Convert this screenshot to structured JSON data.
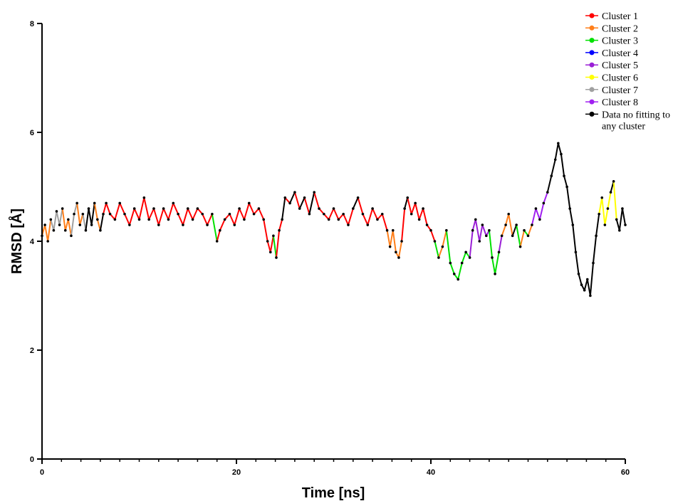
{
  "chart_data": {
    "type": "line",
    "title": "",
    "xlabel": "Time [ns]",
    "ylabel": "RMSD [Å]",
    "xlim": [
      0,
      60
    ],
    "ylim": [
      0,
      8
    ],
    "x_ticks": [
      0,
      20,
      40,
      60
    ],
    "y_ticks": [
      0,
      2,
      4,
      6,
      8
    ],
    "x_tick_labels": [
      "0",
      "20",
      "40",
      "60"
    ],
    "y_tick_labels": [
      "0",
      "2",
      "4",
      "6",
      "8"
    ],
    "grid": false,
    "legend_position": "top-right",
    "series_style": "line with point markers, colored by cluster membership per segment",
    "series": [
      {
        "name": "Cluster 1",
        "color": "#ff0000"
      },
      {
        "name": "Cluster 2",
        "color": "#ff7f1a"
      },
      {
        "name": "Cluster 3",
        "color": "#00e000"
      },
      {
        "name": "Cluster 4",
        "color": "#0000ff"
      },
      {
        "name": "Cluster 5",
        "color": "#9a1fd6"
      },
      {
        "name": "Cluster 6",
        "color": "#ffff00"
      },
      {
        "name": "Cluster 7",
        "color": "#a0a0a0"
      },
      {
        "name": "Cluster 8",
        "color": "#a020f0"
      },
      {
        "name": "Data no fitting to any cluster",
        "color": "#000000"
      }
    ],
    "points": [
      [
        0.0,
        4.1,
        "Cluster 2"
      ],
      [
        0.3,
        4.3,
        "Cluster 2"
      ],
      [
        0.6,
        4.0,
        "Cluster 2"
      ],
      [
        0.9,
        4.4,
        "Cluster 2"
      ],
      [
        1.2,
        4.2,
        "Cluster 7"
      ],
      [
        1.5,
        4.55,
        "Cluster 7"
      ],
      [
        1.8,
        4.3,
        "Cluster 7"
      ],
      [
        2.1,
        4.6,
        "Cluster 7"
      ],
      [
        2.4,
        4.2,
        "Cluster 2"
      ],
      [
        2.7,
        4.4,
        "Cluster 2"
      ],
      [
        3.0,
        4.1,
        "Cluster 2"
      ],
      [
        3.3,
        4.5,
        "Cluster 7"
      ],
      [
        3.6,
        4.7,
        "Cluster 7"
      ],
      [
        3.9,
        4.3,
        "Cluster 2"
      ],
      [
        4.2,
        4.5,
        "Cluster 2"
      ],
      [
        4.5,
        4.2,
        "Cluster 7"
      ],
      [
        4.8,
        4.6,
        "Data no fitting to any cluster"
      ],
      [
        5.1,
        4.3,
        "Data no fitting to any cluster"
      ],
      [
        5.4,
        4.7,
        "Data no fitting to any cluster"
      ],
      [
        5.7,
        4.4,
        "Cluster 2"
      ],
      [
        6.0,
        4.2,
        "Cluster 2"
      ],
      [
        6.3,
        4.5,
        "Data no fitting to any cluster"
      ],
      [
        6.6,
        4.7,
        "Cluster 1"
      ],
      [
        7.0,
        4.5,
        "Cluster 1"
      ],
      [
        7.5,
        4.4,
        "Cluster 1"
      ],
      [
        8.0,
        4.7,
        "Cluster 1"
      ],
      [
        8.5,
        4.5,
        "Cluster 1"
      ],
      [
        9.0,
        4.3,
        "Cluster 1"
      ],
      [
        9.5,
        4.6,
        "Cluster 1"
      ],
      [
        10.0,
        4.4,
        "Cluster 1"
      ],
      [
        10.5,
        4.8,
        "Cluster 1"
      ],
      [
        11.0,
        4.4,
        "Cluster 1"
      ],
      [
        11.5,
        4.6,
        "Cluster 1"
      ],
      [
        12.0,
        4.3,
        "Cluster 1"
      ],
      [
        12.5,
        4.6,
        "Cluster 1"
      ],
      [
        13.0,
        4.4,
        "Cluster 1"
      ],
      [
        13.5,
        4.7,
        "Cluster 1"
      ],
      [
        14.0,
        4.5,
        "Cluster 1"
      ],
      [
        14.5,
        4.3,
        "Cluster 1"
      ],
      [
        15.0,
        4.6,
        "Cluster 1"
      ],
      [
        15.5,
        4.4,
        "Cluster 1"
      ],
      [
        16.0,
        4.6,
        "Cluster 1"
      ],
      [
        16.5,
        4.5,
        "Cluster 1"
      ],
      [
        17.0,
        4.3,
        "Cluster 1"
      ],
      [
        17.5,
        4.5,
        "Cluster 1"
      ],
      [
        18.0,
        4.0,
        "Cluster 3"
      ],
      [
        18.3,
        4.2,
        "Cluster 1"
      ],
      [
        18.8,
        4.4,
        "Cluster 1"
      ],
      [
        19.3,
        4.5,
        "Cluster 1"
      ],
      [
        19.8,
        4.3,
        "Cluster 1"
      ],
      [
        20.3,
        4.6,
        "Cluster 1"
      ],
      [
        20.8,
        4.4,
        "Cluster 1"
      ],
      [
        21.3,
        4.7,
        "Cluster 1"
      ],
      [
        21.8,
        4.5,
        "Cluster 1"
      ],
      [
        22.3,
        4.6,
        "Cluster 1"
      ],
      [
        22.8,
        4.4,
        "Cluster 1"
      ],
      [
        23.2,
        4.0,
        "Cluster 1"
      ],
      [
        23.5,
        3.8,
        "Cluster 1"
      ],
      [
        23.8,
        4.1,
        "Cluster 1"
      ],
      [
        24.1,
        3.7,
        "Cluster 3"
      ],
      [
        24.4,
        4.2,
        "Cluster 1"
      ],
      [
        24.7,
        4.4,
        "Cluster 1"
      ],
      [
        25.0,
        4.8,
        "Data no fitting to any cluster"
      ],
      [
        25.5,
        4.7,
        "Cluster 1"
      ],
      [
        26.0,
        4.9,
        "Data no fitting to any cluster"
      ],
      [
        26.5,
        4.6,
        "Cluster 1"
      ],
      [
        27.0,
        4.8,
        "Data no fitting to any cluster"
      ],
      [
        27.5,
        4.5,
        "Cluster 1"
      ],
      [
        28.0,
        4.9,
        "Data no fitting to any cluster"
      ],
      [
        28.5,
        4.6,
        "Cluster 1"
      ],
      [
        29.0,
        4.5,
        "Cluster 1"
      ],
      [
        29.5,
        4.4,
        "Cluster 1"
      ],
      [
        30.0,
        4.6,
        "Cluster 1"
      ],
      [
        30.5,
        4.4,
        "Cluster 1"
      ],
      [
        31.0,
        4.5,
        "Cluster 1"
      ],
      [
        31.5,
        4.3,
        "Cluster 1"
      ],
      [
        32.0,
        4.6,
        "Cluster 1"
      ],
      [
        32.5,
        4.8,
        "Data no fitting to any cluster"
      ],
      [
        33.0,
        4.5,
        "Cluster 1"
      ],
      [
        33.5,
        4.3,
        "Cluster 1"
      ],
      [
        34.0,
        4.6,
        "Cluster 1"
      ],
      [
        34.5,
        4.4,
        "Cluster 1"
      ],
      [
        35.0,
        4.5,
        "Cluster 1"
      ],
      [
        35.5,
        4.2,
        "Cluster 1"
      ],
      [
        35.8,
        3.9,
        "Cluster 2"
      ],
      [
        36.1,
        4.2,
        "Cluster 2"
      ],
      [
        36.4,
        3.8,
        "Cluster 2"
      ],
      [
        36.7,
        3.7,
        "Cluster 2"
      ],
      [
        37.0,
        4.0,
        "Cluster 2"
      ],
      [
        37.3,
        4.6,
        "Cluster 1"
      ],
      [
        37.6,
        4.8,
        "Data no fitting to any cluster"
      ],
      [
        38.0,
        4.5,
        "Cluster 1"
      ],
      [
        38.4,
        4.7,
        "Cluster 1"
      ],
      [
        38.8,
        4.4,
        "Cluster 1"
      ],
      [
        39.2,
        4.6,
        "Cluster 1"
      ],
      [
        39.6,
        4.3,
        "Cluster 1"
      ],
      [
        40.0,
        4.2,
        "Cluster 1"
      ],
      [
        40.4,
        4.0,
        "Cluster 1"
      ],
      [
        40.8,
        3.7,
        "Cluster 3"
      ],
      [
        41.2,
        3.9,
        "Cluster 2"
      ],
      [
        41.6,
        4.2,
        "Cluster 2"
      ],
      [
        42.0,
        3.6,
        "Cluster 3"
      ],
      [
        42.4,
        3.4,
        "Cluster 3"
      ],
      [
        42.8,
        3.3,
        "Cluster 3"
      ],
      [
        43.2,
        3.6,
        "Cluster 3"
      ],
      [
        43.6,
        3.8,
        "Cluster 3"
      ],
      [
        44.0,
        3.7,
        "Cluster 3"
      ],
      [
        44.3,
        4.2,
        "Cluster 5"
      ],
      [
        44.6,
        4.4,
        "Cluster 5"
      ],
      [
        45.0,
        4.0,
        "Cluster 5"
      ],
      [
        45.3,
        4.3,
        "Cluster 5"
      ],
      [
        45.7,
        4.1,
        "Cluster 5"
      ],
      [
        46.0,
        4.2,
        "Cluster 5"
      ],
      [
        46.3,
        3.7,
        "Cluster 3"
      ],
      [
        46.6,
        3.4,
        "Cluster 3"
      ],
      [
        47.0,
        3.8,
        "Cluster 3"
      ],
      [
        47.3,
        4.1,
        "Cluster 5"
      ],
      [
        47.7,
        4.3,
        "Cluster 2"
      ],
      [
        48.0,
        4.5,
        "Cluster 2"
      ],
      [
        48.4,
        4.1,
        "Cluster 2"
      ],
      [
        48.8,
        4.3,
        "Data no fitting to any cluster"
      ],
      [
        49.2,
        3.9,
        "Cluster 3"
      ],
      [
        49.6,
        4.2,
        "Cluster 2"
      ],
      [
        50.0,
        4.1,
        "Cluster 3"
      ],
      [
        50.4,
        4.3,
        "Cluster 2"
      ],
      [
        50.8,
        4.6,
        "Cluster 8"
      ],
      [
        51.2,
        4.4,
        "Cluster 8"
      ],
      [
        51.6,
        4.7,
        "Cluster 8"
      ],
      [
        52.0,
        4.9,
        "Cluster 8"
      ],
      [
        52.4,
        5.2,
        "Data no fitting to any cluster"
      ],
      [
        52.8,
        5.5,
        "Data no fitting to any cluster"
      ],
      [
        53.1,
        5.8,
        "Data no fitting to any cluster"
      ],
      [
        53.4,
        5.6,
        "Data no fitting to any cluster"
      ],
      [
        53.7,
        5.2,
        "Data no fitting to any cluster"
      ],
      [
        54.0,
        5.0,
        "Data no fitting to any cluster"
      ],
      [
        54.3,
        4.6,
        "Data no fitting to any cluster"
      ],
      [
        54.6,
        4.3,
        "Data no fitting to any cluster"
      ],
      [
        54.9,
        3.8,
        "Data no fitting to any cluster"
      ],
      [
        55.2,
        3.4,
        "Data no fitting to any cluster"
      ],
      [
        55.5,
        3.2,
        "Data no fitting to any cluster"
      ],
      [
        55.8,
        3.1,
        "Data no fitting to any cluster"
      ],
      [
        56.1,
        3.3,
        "Data no fitting to any cluster"
      ],
      [
        56.4,
        3.0,
        "Data no fitting to any cluster"
      ],
      [
        56.7,
        3.6,
        "Data no fitting to any cluster"
      ],
      [
        57.0,
        4.1,
        "Data no fitting to any cluster"
      ],
      [
        57.3,
        4.5,
        "Data no fitting to any cluster"
      ],
      [
        57.6,
        4.8,
        "Cluster 6"
      ],
      [
        57.9,
        4.3,
        "Cluster 6"
      ],
      [
        58.2,
        4.6,
        "Cluster 6"
      ],
      [
        58.5,
        4.9,
        "Cluster 6"
      ],
      [
        58.8,
        5.1,
        "Data no fitting to any cluster"
      ],
      [
        59.1,
        4.4,
        "Cluster 6"
      ],
      [
        59.4,
        4.2,
        "Data no fitting to any cluster"
      ],
      [
        59.7,
        4.6,
        "Data no fitting to any cluster"
      ],
      [
        60.0,
        4.3,
        "Data no fitting to any cluster"
      ]
    ]
  }
}
